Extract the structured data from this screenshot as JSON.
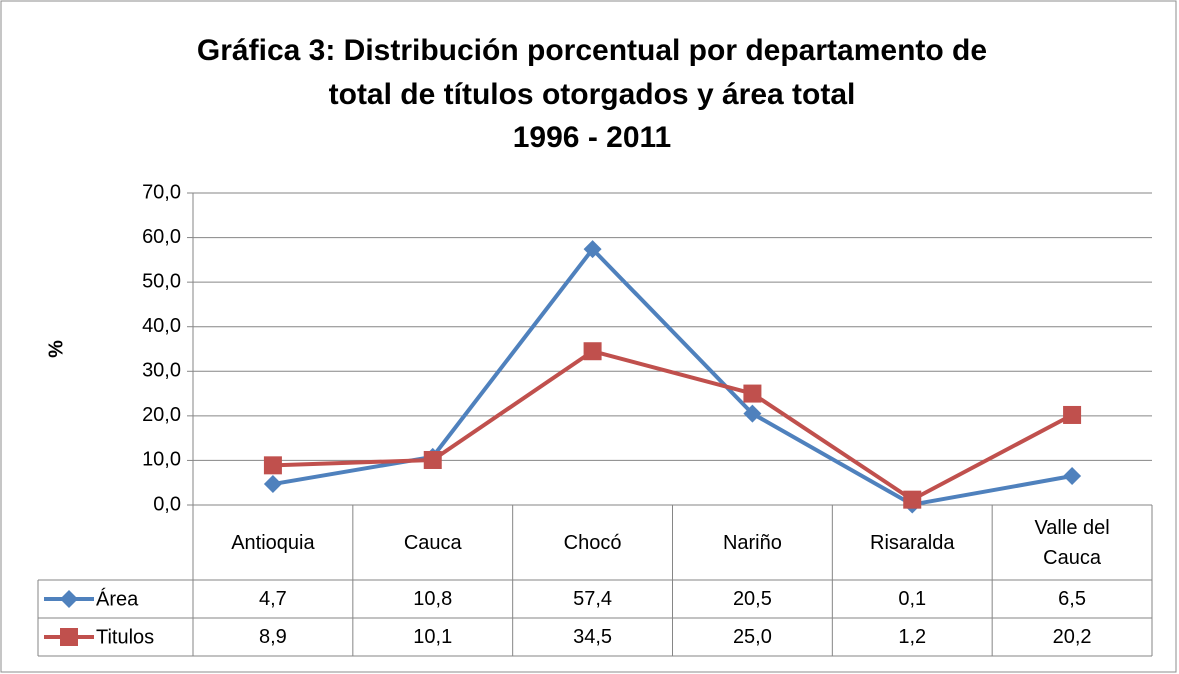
{
  "chart_data": {
    "type": "line",
    "title": [
      "Gráfica 3: Distribución porcentual por departamento de",
      "total de títulos otorgados y área total",
      "1996 - 2011"
    ],
    "y_label": "%",
    "categories": [
      "Antioquia",
      "Cauca",
      "Chocó",
      "Nariño",
      "Risaralda",
      "Valle del Cauca"
    ],
    "series": [
      {
        "name": "Área",
        "color": "#4f81bd",
        "marker": "diamond",
        "values": [
          4.7,
          10.8,
          57.4,
          20.5,
          0.1,
          6.5
        ],
        "value_labels": [
          "4,7",
          "10,8",
          "57,4",
          "20,5",
          "0,1",
          "6,5"
        ]
      },
      {
        "name": "Titulos",
        "color": "#c0504d",
        "marker": "square",
        "values": [
          8.9,
          10.1,
          34.5,
          25.0,
          1.2,
          20.2
        ],
        "value_labels": [
          "8,9",
          "10,1",
          "34,5",
          "25,0",
          "1,2",
          "20,2"
        ]
      }
    ],
    "ylim": [
      0,
      70
    ],
    "yticks": [
      {
        "value": 0,
        "label": "0,0"
      },
      {
        "value": 10,
        "label": "10,0"
      },
      {
        "value": 20,
        "label": "20,0"
      },
      {
        "value": 30,
        "label": "30,0"
      },
      {
        "value": 40,
        "label": "40,0"
      },
      {
        "value": 50,
        "label": "50,0"
      },
      {
        "value": 60,
        "label": "60,0"
      },
      {
        "value": 70,
        "label": "70,0"
      }
    ],
    "grid": true,
    "legend": "table"
  }
}
